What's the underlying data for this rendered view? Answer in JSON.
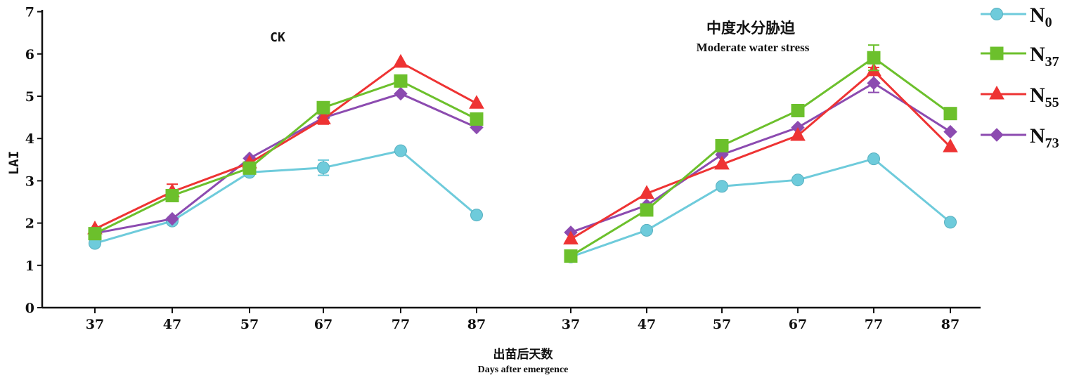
{
  "chart_data": [
    {
      "type": "line",
      "title": "CK",
      "ylabel": "LAI",
      "xlabel_cn": "出苗后天数",
      "xlabel": "Days after emergence",
      "categories": [
        "37",
        "47",
        "57",
        "67",
        "77",
        "87"
      ],
      "ylim": [
        0,
        7
      ],
      "yticks": [
        "0",
        "1",
        "2",
        "3",
        "4",
        "5",
        "6",
        "7"
      ],
      "series": [
        {
          "name": "N0",
          "values": [
            1.52,
            2.05,
            3.2,
            3.31,
            3.71,
            2.19
          ],
          "errors": [
            0.03,
            0.04,
            0.04,
            0.18,
            0.04,
            0.04
          ]
        },
        {
          "name": "N37",
          "values": [
            1.75,
            2.65,
            3.3,
            4.73,
            5.36,
            4.46
          ],
          "errors": [
            0.04,
            0.1,
            0.05,
            0.07,
            0.06,
            0.05
          ]
        },
        {
          "name": "N55",
          "values": [
            1.86,
            2.74,
            3.42,
            4.46,
            5.8,
            4.83
          ],
          "errors": [
            0.03,
            0.18,
            0.05,
            0.12,
            0.05,
            0.04
          ]
        },
        {
          "name": "N73",
          "values": [
            1.76,
            2.1,
            3.53,
            4.49,
            5.06,
            4.26
          ],
          "errors": [
            0.03,
            0.04,
            0.04,
            0.1,
            0.05,
            0.04
          ]
        }
      ]
    },
    {
      "type": "line",
      "title_cn": "中度水分胁迫",
      "title": "Moderate water stress",
      "categories": [
        "37",
        "47",
        "57",
        "67",
        "77",
        "87"
      ],
      "ylim": [
        0,
        7
      ],
      "series": [
        {
          "name": "N0",
          "values": [
            1.2,
            1.83,
            2.87,
            3.02,
            3.52,
            2.02
          ],
          "errors": [
            0.03,
            0.04,
            0.04,
            0.04,
            0.05,
            0.03
          ]
        },
        {
          "name": "N37",
          "values": [
            1.22,
            2.31,
            3.83,
            4.66,
            5.91,
            4.59
          ],
          "errors": [
            0.04,
            0.05,
            0.05,
            0.05,
            0.3,
            0.05
          ]
        },
        {
          "name": "N55",
          "values": [
            1.62,
            2.7,
            3.39,
            4.07,
            5.6,
            3.8
          ],
          "errors": [
            0.04,
            0.05,
            0.05,
            0.06,
            0.08,
            0.04
          ]
        },
        {
          "name": "N73",
          "values": [
            1.78,
            2.42,
            3.62,
            4.26,
            5.31,
            4.16
          ],
          "errors": [
            0.04,
            0.05,
            0.04,
            0.05,
            0.22,
            0.04
          ]
        }
      ]
    }
  ],
  "legend": [
    {
      "base": "N",
      "sub": "0",
      "color": "#6ecbdb",
      "marker": "circle"
    },
    {
      "base": "N",
      "sub": "37",
      "color": "#6cc02c",
      "marker": "square"
    },
    {
      "base": "N",
      "sub": "55",
      "color": "#ee3333",
      "marker": "triangle"
    },
    {
      "base": "N",
      "sub": "73",
      "color": "#8c4bb0",
      "marker": "diamond"
    }
  ],
  "colors": {
    "N0": "#6ecbdb",
    "N37": "#6cc02c",
    "N55": "#ee3333",
    "N73": "#8c4bb0",
    "axis": "#111111"
  }
}
